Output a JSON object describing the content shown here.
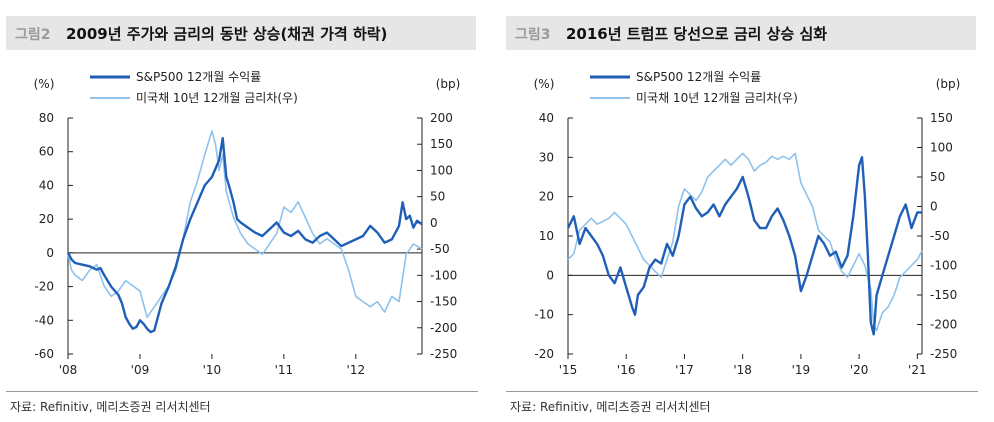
{
  "colors": {
    "series1": "#1f5fb8",
    "series2": "#8ec2ec",
    "axis": "#222222",
    "titlebar_bg": "#e6e6e6",
    "label_gray": "#9a9a9a"
  },
  "panels": [
    {
      "fig_label": "그림2",
      "title": "2009년 주가와 금리의 동반 상승(채권 가격 하락)",
      "source": "자료: Refinitiv, 메리츠증권 리서치센터"
    },
    {
      "fig_label": "그림3",
      "title": "2016년 트럼프 당선으로 금리 상승 심화",
      "source": "자료: Refinitiv, 메리츠증권 리서치센터"
    }
  ],
  "chart_data": [
    {
      "type": "line",
      "title": "2009년 주가와 금리의 동반 상승(채권 가격 하락)",
      "left_unit": "(%)",
      "right_unit": "(bp)",
      "ylim_left": [
        -60,
        80
      ],
      "ylim_right": [
        -250,
        200
      ],
      "yticks_left": [
        -60,
        -40,
        -20,
        0,
        20,
        40,
        60,
        80
      ],
      "yticks_right": [
        -250,
        -200,
        -150,
        -100,
        -50,
        0,
        50,
        100,
        150,
        200
      ],
      "x_range": [
        2008,
        2012.92
      ],
      "xticks": [
        2008,
        2009,
        2010,
        2011,
        2012
      ],
      "xtick_labels": [
        "'08",
        "'09",
        "'10",
        "'11",
        "'12"
      ],
      "series": [
        {
          "name": "S&P500 12개월 수익률",
          "axis": "left",
          "x": [
            2008.0,
            2008.05,
            2008.1,
            2008.2,
            2008.3,
            2008.4,
            2008.45,
            2008.5,
            2008.6,
            2008.7,
            2008.75,
            2008.8,
            2008.85,
            2008.9,
            2008.95,
            2009.0,
            2009.05,
            2009.1,
            2009.15,
            2009.2,
            2009.25,
            2009.3,
            2009.4,
            2009.5,
            2009.6,
            2009.7,
            2009.8,
            2009.9,
            2010.0,
            2010.1,
            2010.15,
            2010.2,
            2010.25,
            2010.3,
            2010.35,
            2010.4,
            2010.5,
            2010.6,
            2010.7,
            2010.8,
            2010.9,
            2011.0,
            2011.1,
            2011.2,
            2011.3,
            2011.4,
            2011.5,
            2011.6,
            2011.7,
            2011.8,
            2011.9,
            2012.0,
            2012.1,
            2012.2,
            2012.3,
            2012.4,
            2012.5,
            2012.6,
            2012.65,
            2012.7,
            2012.75,
            2012.8,
            2012.85,
            2012.92
          ],
          "values": [
            0,
            -4,
            -6,
            -7,
            -8,
            -10,
            -9,
            -13,
            -20,
            -25,
            -30,
            -38,
            -42,
            -45,
            -44,
            -40,
            -42,
            -45,
            -47,
            -46,
            -38,
            -30,
            -20,
            -8,
            8,
            20,
            30,
            40,
            45,
            55,
            68,
            45,
            38,
            30,
            20,
            18,
            15,
            12,
            10,
            14,
            18,
            12,
            10,
            13,
            8,
            6,
            10,
            12,
            8,
            4,
            6,
            8,
            10,
            16,
            12,
            6,
            8,
            16,
            30,
            20,
            22,
            15,
            19,
            17
          ]
        },
        {
          "name": "미국채 10년 12개월 금리차(우)",
          "axis": "right",
          "x": [
            2008.0,
            2008.05,
            2008.1,
            2008.2,
            2008.3,
            2008.4,
            2008.5,
            2008.6,
            2008.7,
            2008.8,
            2008.9,
            2009.0,
            2009.1,
            2009.2,
            2009.3,
            2009.4,
            2009.5,
            2009.6,
            2009.7,
            2009.8,
            2009.9,
            2010.0,
            2010.05,
            2010.1,
            2010.15,
            2010.2,
            2010.3,
            2010.4,
            2010.5,
            2010.6,
            2010.7,
            2010.8,
            2010.9,
            2011.0,
            2011.1,
            2011.2,
            2011.3,
            2011.4,
            2011.5,
            2011.6,
            2011.7,
            2011.8,
            2011.9,
            2012.0,
            2012.1,
            2012.2,
            2012.3,
            2012.4,
            2012.5,
            2012.6,
            2012.7,
            2012.8,
            2012.92
          ],
          "values": [
            -60,
            -90,
            -100,
            -110,
            -90,
            -80,
            -120,
            -140,
            -130,
            -110,
            -120,
            -130,
            -180,
            -160,
            -140,
            -120,
            -90,
            -30,
            40,
            80,
            130,
            175,
            150,
            100,
            130,
            60,
            10,
            -20,
            -40,
            -50,
            -60,
            -40,
            -20,
            30,
            20,
            40,
            10,
            -20,
            -40,
            -30,
            -40,
            -50,
            -90,
            -140,
            -150,
            -160,
            -150,
            -170,
            -140,
            -150,
            -60,
            -40,
            -50
          ]
        }
      ]
    },
    {
      "type": "line",
      "title": "2016년 트럼프 당선으로 금리 상승 심화",
      "left_unit": "(%)",
      "right_unit": "(bp)",
      "ylim_left": [
        -20,
        40
      ],
      "ylim_right": [
        -250,
        150
      ],
      "yticks_left": [
        -20,
        -10,
        0,
        10,
        20,
        30,
        40
      ],
      "yticks_right": [
        -250,
        -200,
        -150,
        -100,
        -50,
        0,
        50,
        100,
        150
      ],
      "x_range": [
        2015,
        2021.08
      ],
      "xticks": [
        2015,
        2016,
        2017,
        2018,
        2019,
        2020,
        2021
      ],
      "xtick_labels": [
        "'15",
        "'16",
        "'17",
        "'18",
        "'19",
        "'20",
        "'21"
      ],
      "series": [
        {
          "name": "S&P500 12개월 수익률",
          "axis": "left",
          "x": [
            2015.0,
            2015.1,
            2015.2,
            2015.3,
            2015.4,
            2015.5,
            2015.6,
            2015.7,
            2015.8,
            2015.9,
            2016.0,
            2016.1,
            2016.15,
            2016.2,
            2016.3,
            2016.4,
            2016.5,
            2016.6,
            2016.7,
            2016.8,
            2016.9,
            2017.0,
            2017.1,
            2017.2,
            2017.3,
            2017.4,
            2017.5,
            2017.6,
            2017.7,
            2017.8,
            2017.9,
            2018.0,
            2018.1,
            2018.2,
            2018.3,
            2018.4,
            2018.5,
            2018.6,
            2018.7,
            2018.8,
            2018.9,
            2019.0,
            2019.1,
            2019.2,
            2019.3,
            2019.4,
            2019.5,
            2019.6,
            2019.7,
            2019.8,
            2019.9,
            2020.0,
            2020.05,
            2020.1,
            2020.15,
            2020.2,
            2020.25,
            2020.3,
            2020.4,
            2020.5,
            2020.6,
            2020.7,
            2020.8,
            2020.9,
            2021.0,
            2021.08
          ],
          "values": [
            12,
            15,
            8,
            12,
            10,
            8,
            5,
            0,
            -2,
            2,
            -3,
            -8,
            -10,
            -5,
            -3,
            2,
            4,
            3,
            8,
            5,
            10,
            18,
            20,
            17,
            15,
            16,
            18,
            15,
            18,
            20,
            22,
            25,
            20,
            14,
            12,
            12,
            15,
            17,
            14,
            10,
            5,
            -4,
            0,
            5,
            10,
            8,
            5,
            6,
            2,
            5,
            15,
            28,
            30,
            20,
            5,
            -12,
            -15,
            -5,
            0,
            5,
            10,
            15,
            18,
            12,
            16,
            16
          ]
        },
        {
          "name": "미국채 10년 12개월 금리차(우)",
          "axis": "right",
          "x": [
            2015.0,
            2015.1,
            2015.2,
            2015.3,
            2015.4,
            2015.5,
            2015.6,
            2015.7,
            2015.8,
            2015.9,
            2016.0,
            2016.1,
            2016.2,
            2016.3,
            2016.4,
            2016.5,
            2016.6,
            2016.7,
            2016.8,
            2016.9,
            2017.0,
            2017.1,
            2017.2,
            2017.3,
            2017.4,
            2017.5,
            2017.6,
            2017.7,
            2017.8,
            2017.9,
            2018.0,
            2018.1,
            2018.2,
            2018.3,
            2018.4,
            2018.5,
            2018.6,
            2018.7,
            2018.8,
            2018.9,
            2019.0,
            2019.1,
            2019.2,
            2019.3,
            2019.4,
            2019.5,
            2019.6,
            2019.7,
            2019.8,
            2019.9,
            2020.0,
            2020.1,
            2020.2,
            2020.25,
            2020.3,
            2020.4,
            2020.5,
            2020.6,
            2020.7,
            2020.8,
            2020.9,
            2021.0,
            2021.08
          ],
          "values": [
            -90,
            -80,
            -40,
            -30,
            -20,
            -30,
            -25,
            -20,
            -10,
            -20,
            -30,
            -50,
            -70,
            -90,
            -100,
            -110,
            -120,
            -90,
            -60,
            0,
            30,
            20,
            10,
            25,
            50,
            60,
            70,
            80,
            70,
            80,
            90,
            80,
            60,
            70,
            75,
            85,
            80,
            85,
            80,
            90,
            40,
            20,
            0,
            -40,
            -50,
            -60,
            -90,
            -110,
            -120,
            -100,
            -80,
            -100,
            -140,
            -200,
            -210,
            -180,
            -170,
            -150,
            -120,
            -110,
            -100,
            -90,
            -75
          ]
        }
      ]
    }
  ]
}
